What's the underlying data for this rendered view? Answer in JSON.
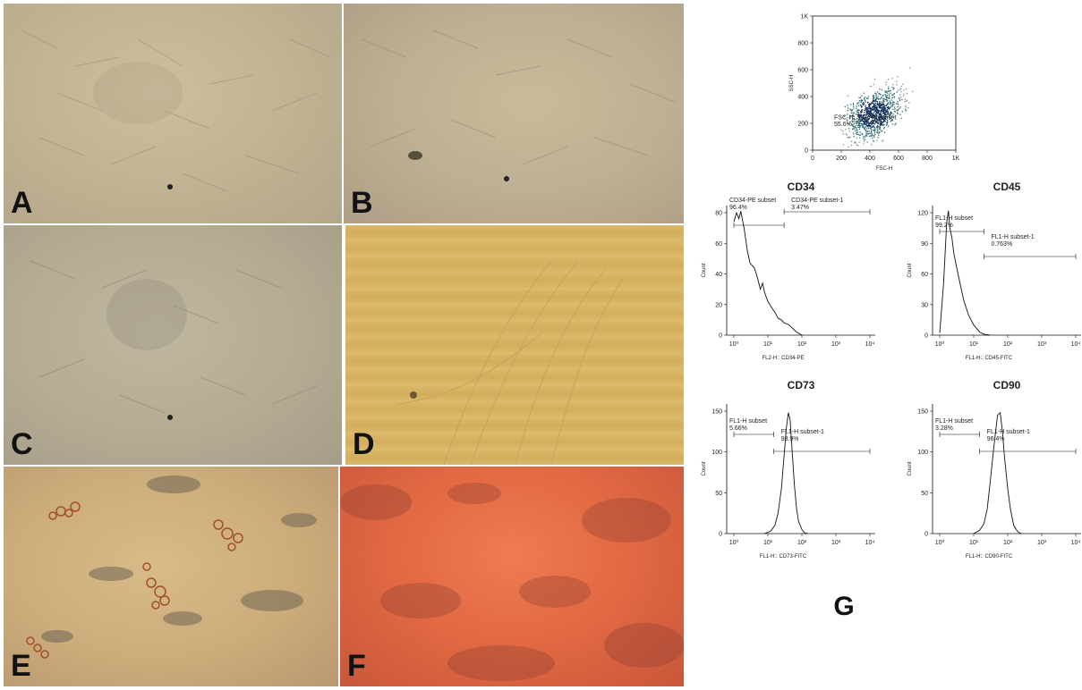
{
  "panels": {
    "A": "A",
    "B": "B",
    "C": "C",
    "D": "D",
    "E": "E",
    "F": "F",
    "G": "G"
  },
  "colors": {
    "scatter_dense": "#0c2a54",
    "scatter_mid": "#2f6e74",
    "scatter_sparse": "#7a8f93",
    "line": "#111111"
  },
  "chart_data": [
    {
      "type": "scatter",
      "xlabel": "FSC-H",
      "ylabel": "SSC-H",
      "xlim": [
        0,
        1000
      ],
      "ylim": [
        0,
        1000
      ],
      "x_ticks": [
        "0",
        "200",
        "400",
        "600",
        "800",
        "1K"
      ],
      "y_ticks": [
        "0",
        "200",
        "400",
        "600",
        "800",
        "1K"
      ],
      "gate": {
        "name": "FSC-H, SSC-H subset",
        "value": "55.6%"
      },
      "population_center": [
        430,
        280
      ]
    },
    {
      "type": "area",
      "title": "CD34",
      "xlabel": "FL2-H:: CD34-PE",
      "ylabel": "Count",
      "log_x": true,
      "xlim": [
        1,
        10000
      ],
      "ylim": [
        0,
        80
      ],
      "x_ticks": [
        "10⁰",
        "10¹",
        "10²",
        "10³",
        "10⁴"
      ],
      "y_ticks": [
        "0",
        "20",
        "40",
        "60",
        "80"
      ],
      "gates": [
        {
          "name": "CD34-PE subset",
          "value": "96.4%",
          "x_range": [
            1,
            30
          ]
        },
        {
          "name": "CD34-PE subset-1",
          "value": "3.47%",
          "x_range": [
            30,
            10000
          ]
        }
      ],
      "histogram": {
        "x": [
          1,
          1.2,
          1.4,
          1.6,
          2,
          2.5,
          3,
          4,
          5,
          6,
          7,
          8,
          10,
          13,
          16,
          20,
          25,
          30,
          40,
          50,
          70,
          100
        ],
        "y": [
          74,
          80,
          76,
          81,
          70,
          55,
          47,
          44,
          37,
          30,
          34,
          28,
          22,
          18,
          15,
          11,
          10,
          8,
          7,
          5,
          2,
          0
        ]
      }
    },
    {
      "type": "area",
      "title": "CD45",
      "xlabel": "FL1-H:: CD45-FITC",
      "ylabel": "Count",
      "log_x": true,
      "xlim": [
        1,
        10000
      ],
      "ylim": [
        0,
        120
      ],
      "x_ticks": [
        "10⁰",
        "10¹",
        "10²",
        "10³",
        "10⁴"
      ],
      "y_ticks": [
        "0",
        "30",
        "60",
        "90",
        "120"
      ],
      "gates": [
        {
          "name": "FL1-H subset",
          "value": "99.2%",
          "x_range": [
            1,
            20
          ]
        },
        {
          "name": "FL1-H subset-1",
          "value": "0.763%",
          "x_range": [
            20,
            10000
          ]
        }
      ],
      "histogram": {
        "x": [
          1,
          1.3,
          1.6,
          1.8,
          2,
          2.3,
          2.6,
          3,
          4,
          5,
          7,
          10,
          15,
          20,
          30
        ],
        "y": [
          2,
          50,
          110,
          122,
          105,
          95,
          80,
          70,
          50,
          35,
          20,
          10,
          3,
          1,
          0
        ]
      }
    },
    {
      "type": "area",
      "title": "CD73",
      "xlabel": "FL1-H:: CD73-FITC",
      "ylabel": "Count",
      "log_x": true,
      "xlim": [
        1,
        10000
      ],
      "ylim": [
        0,
        150
      ],
      "x_ticks": [
        "10⁰",
        "10¹",
        "10²",
        "10³",
        "10⁴"
      ],
      "y_ticks": [
        "0",
        "50",
        "100",
        "150"
      ],
      "gates": [
        {
          "name": "FL1-H subset",
          "value": "5.66%",
          "x_range": [
            1,
            15
          ]
        },
        {
          "name": "FL1-H subset-1",
          "value": "93.9%",
          "x_range": [
            15,
            10000
          ]
        }
      ],
      "histogram": {
        "x": [
          8,
          12,
          16,
          20,
          25,
          30,
          35,
          40,
          45,
          50,
          55,
          60,
          70,
          80,
          100,
          120,
          150
        ],
        "y": [
          0,
          3,
          10,
          25,
          55,
          95,
          130,
          148,
          140,
          110,
          85,
          60,
          30,
          15,
          5,
          1,
          0
        ]
      }
    },
    {
      "type": "area",
      "title": "CD90",
      "xlabel": "FL1-H:: CD90-FITC",
      "ylabel": "Count",
      "log_x": true,
      "xlim": [
        1,
        10000
      ],
      "ylim": [
        0,
        150
      ],
      "x_ticks": [
        "10⁰",
        "10¹",
        "10²",
        "10³",
        "10⁴"
      ],
      "y_ticks": [
        "0",
        "50",
        "100",
        "150"
      ],
      "gates": [
        {
          "name": "FL1-H subset",
          "value": "3.28%",
          "x_range": [
            1,
            15
          ]
        },
        {
          "name": "FL1-H subset-1",
          "value": "96.4%",
          "x_range": [
            15,
            10000
          ]
        }
      ],
      "histogram": {
        "x": [
          10,
          15,
          20,
          25,
          30,
          40,
          50,
          60,
          70,
          80,
          100,
          120,
          150,
          200,
          250
        ],
        "y": [
          0,
          4,
          12,
          30,
          60,
          110,
          145,
          148,
          125,
          95,
          55,
          30,
          10,
          2,
          0
        ]
      }
    }
  ]
}
